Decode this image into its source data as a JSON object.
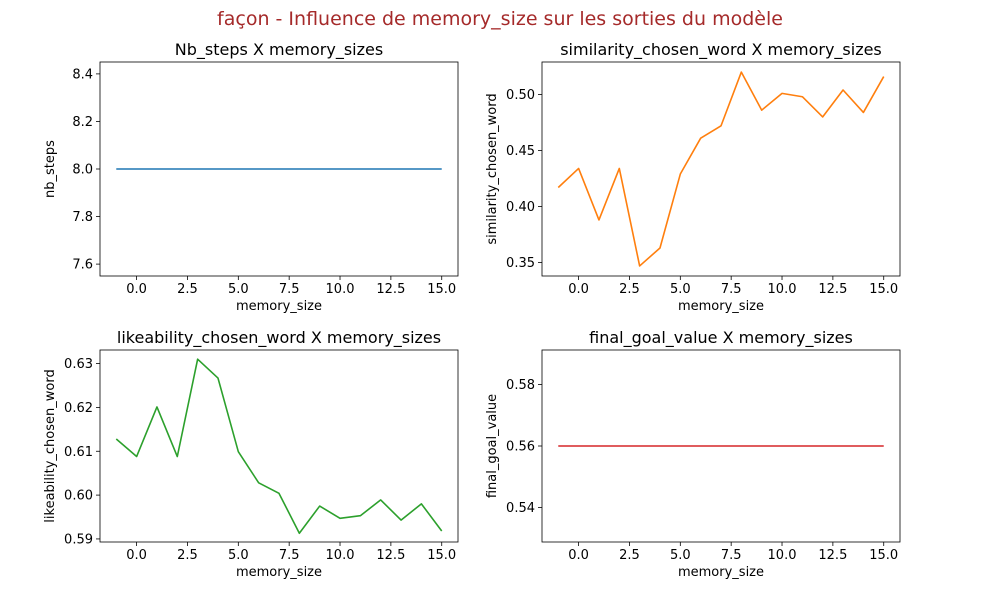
{
  "suptitle": "façon - Influence de memory_size sur les sorties du modèle",
  "chart_data": [
    {
      "type": "line",
      "title": "Nb_steps X memory_sizes",
      "xlabel": "memory_size",
      "ylabel": "nb_steps",
      "color": "#1f77b4",
      "x": [
        -1,
        0,
        1,
        2,
        3,
        4,
        5,
        6,
        7,
        8,
        9,
        10,
        11,
        12,
        13,
        14,
        15
      ],
      "y": [
        8,
        8,
        8,
        8,
        8,
        8,
        8,
        8,
        8,
        8,
        8,
        8,
        8,
        8,
        8,
        8,
        8
      ],
      "xlim": [
        -1.8,
        15.8
      ],
      "ylim": [
        7.55,
        8.45
      ],
      "xticks": [
        0,
        2.5,
        5,
        7.5,
        10,
        12.5,
        15
      ],
      "xtick_labels": [
        "0.0",
        "2.5",
        "5.0",
        "7.5",
        "10.0",
        "12.5",
        "15.0"
      ],
      "yticks": [
        7.6,
        7.8,
        8.0,
        8.2,
        8.4
      ],
      "ytick_labels": [
        "7.6",
        "7.8",
        "8.0",
        "8.2",
        "8.4"
      ]
    },
    {
      "type": "line",
      "title": "similarity_chosen_word X memory_sizes",
      "xlabel": "memory_size",
      "ylabel": "similarity_chosen_word",
      "color": "#ff7f0e",
      "x": [
        -1,
        0,
        1,
        2,
        3,
        4,
        5,
        6,
        7,
        8,
        9,
        10,
        11,
        12,
        13,
        14,
        15
      ],
      "y": [
        0.417,
        0.434,
        0.388,
        0.434,
        0.347,
        0.363,
        0.429,
        0.461,
        0.472,
        0.52,
        0.486,
        0.501,
        0.498,
        0.48,
        0.504,
        0.484,
        0.516
      ],
      "xlim": [
        -1.8,
        15.8
      ],
      "ylim": [
        0.338,
        0.529
      ],
      "xticks": [
        0,
        2.5,
        5,
        7.5,
        10,
        12.5,
        15
      ],
      "xtick_labels": [
        "0.0",
        "2.5",
        "5.0",
        "7.5",
        "10.0",
        "12.5",
        "15.0"
      ],
      "yticks": [
        0.35,
        0.4,
        0.45,
        0.5
      ],
      "ytick_labels": [
        "0.35",
        "0.40",
        "0.45",
        "0.50"
      ]
    },
    {
      "type": "line",
      "title": "likeability_chosen_word X memory_sizes",
      "xlabel": "memory_size",
      "ylabel": "likeability_chosen_word",
      "color": "#2ca02c",
      "x": [
        -1,
        0,
        1,
        2,
        3,
        4,
        5,
        6,
        7,
        8,
        9,
        10,
        11,
        12,
        13,
        14,
        15
      ],
      "y": [
        0.6128,
        0.6088,
        0.6201,
        0.6088,
        0.631,
        0.6267,
        0.6099,
        0.6028,
        0.6004,
        0.5913,
        0.5975,
        0.5947,
        0.5953,
        0.5989,
        0.5943,
        0.598,
        0.5918
      ],
      "xlim": [
        -1.8,
        15.8
      ],
      "ylim": [
        0.5893,
        0.6331
      ],
      "xticks": [
        0,
        2.5,
        5,
        7.5,
        10,
        12.5,
        15
      ],
      "xtick_labels": [
        "0.0",
        "2.5",
        "5.0",
        "7.5",
        "10.0",
        "12.5",
        "15.0"
      ],
      "yticks": [
        0.59,
        0.6,
        0.61,
        0.62,
        0.63
      ],
      "ytick_labels": [
        "0.59",
        "0.60",
        "0.61",
        "0.62",
        "0.63"
      ]
    },
    {
      "type": "line",
      "title": "final_goal_value X memory_sizes",
      "xlabel": "memory_size",
      "ylabel": "final_goal_value",
      "color": "#d62728",
      "x": [
        -1,
        0,
        1,
        2,
        3,
        4,
        5,
        6,
        7,
        8,
        9,
        10,
        11,
        12,
        13,
        14,
        15
      ],
      "y": [
        0.56,
        0.56,
        0.56,
        0.56,
        0.56,
        0.56,
        0.56,
        0.56,
        0.56,
        0.56,
        0.56,
        0.56,
        0.56,
        0.56,
        0.56,
        0.56,
        0.56
      ],
      "xlim": [
        -1.8,
        15.8
      ],
      "ylim": [
        0.5288,
        0.5912
      ],
      "xticks": [
        0,
        2.5,
        5,
        7.5,
        10,
        12.5,
        15
      ],
      "xtick_labels": [
        "0.0",
        "2.5",
        "5.0",
        "7.5",
        "10.0",
        "12.5",
        "15.0"
      ],
      "yticks": [
        0.54,
        0.56,
        0.58
      ],
      "ytick_labels": [
        "0.54",
        "0.56",
        "0.58"
      ]
    }
  ]
}
